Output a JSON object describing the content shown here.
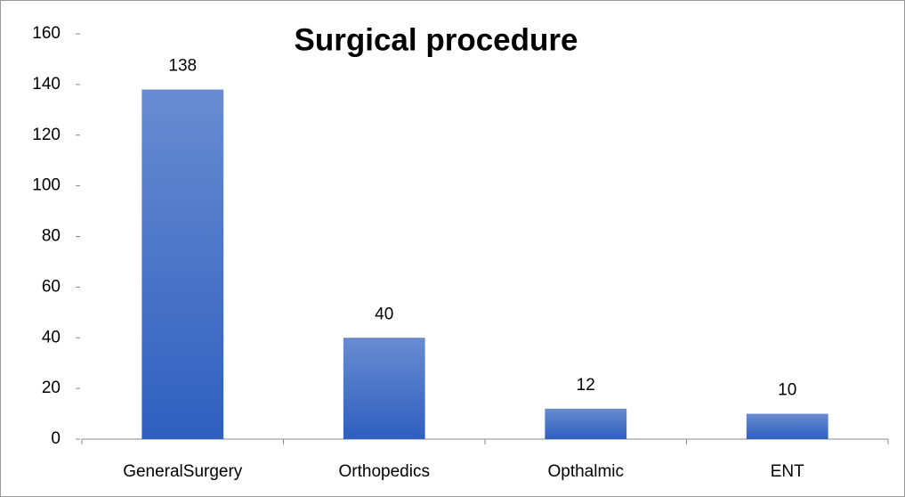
{
  "chart_data": {
    "type": "bar",
    "title": "Surgical procedure",
    "categories": [
      "GeneralSurgery",
      "Orthopedics",
      "Opthalmic",
      "ENT"
    ],
    "values": [
      138,
      40,
      12,
      10
    ],
    "color": "#2f5fbf",
    "ylim": [
      0,
      160
    ],
    "yticks": [
      0,
      20,
      40,
      60,
      80,
      100,
      120,
      140,
      160
    ],
    "grid": false
  }
}
